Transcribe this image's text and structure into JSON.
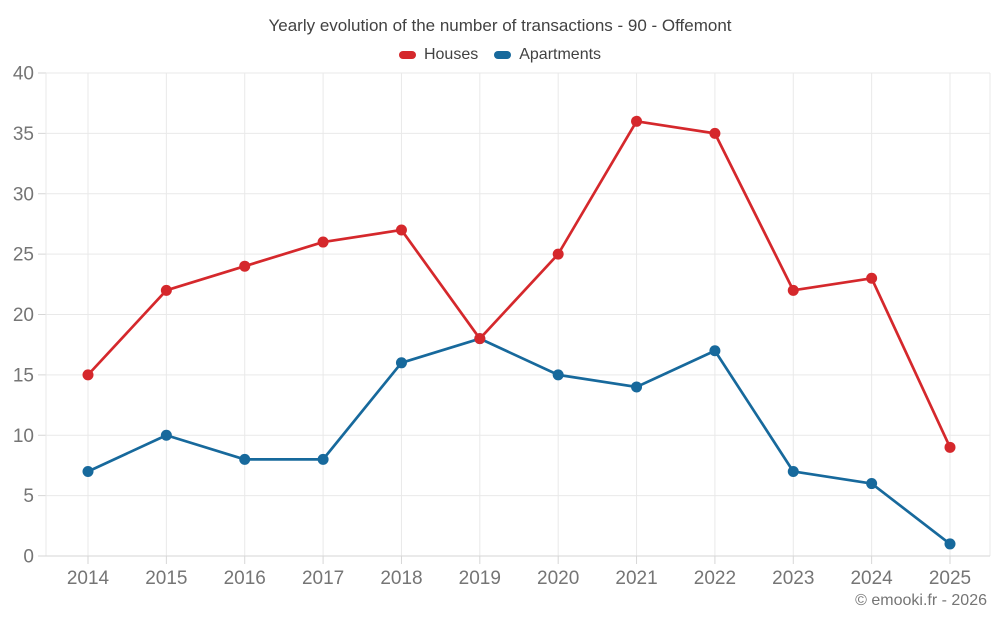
{
  "chart_data": {
    "type": "line",
    "title": "Yearly evolution of the number of transactions - 90 - Offemont",
    "categories": [
      "2014",
      "2015",
      "2016",
      "2017",
      "2018",
      "2019",
      "2020",
      "2021",
      "2022",
      "2023",
      "2024",
      "2025"
    ],
    "series": [
      {
        "name": "Houses",
        "color": "#d5282c",
        "values": [
          15,
          22,
          24,
          26,
          27,
          18,
          25,
          36,
          35,
          22,
          23,
          9
        ]
      },
      {
        "name": "Apartments",
        "color": "#17699c",
        "values": [
          7,
          10,
          8,
          8,
          16,
          18,
          15,
          14,
          17,
          7,
          6,
          1
        ]
      }
    ],
    "xlabel": "",
    "ylabel": "",
    "ylim": [
      0,
      40
    ],
    "y_ticks": [
      0,
      5,
      10,
      15,
      20,
      25,
      30,
      35,
      40
    ],
    "grid": true,
    "legend_position": "top",
    "style": {
      "grid_color": "#e9e9e9",
      "axis_color": "#d6d6d6",
      "tick_label_color": "#757575",
      "title_color": "#424242",
      "tick_label_size": 19
    }
  },
  "footer": {
    "copyright": "© emooki.fr - 2026"
  }
}
